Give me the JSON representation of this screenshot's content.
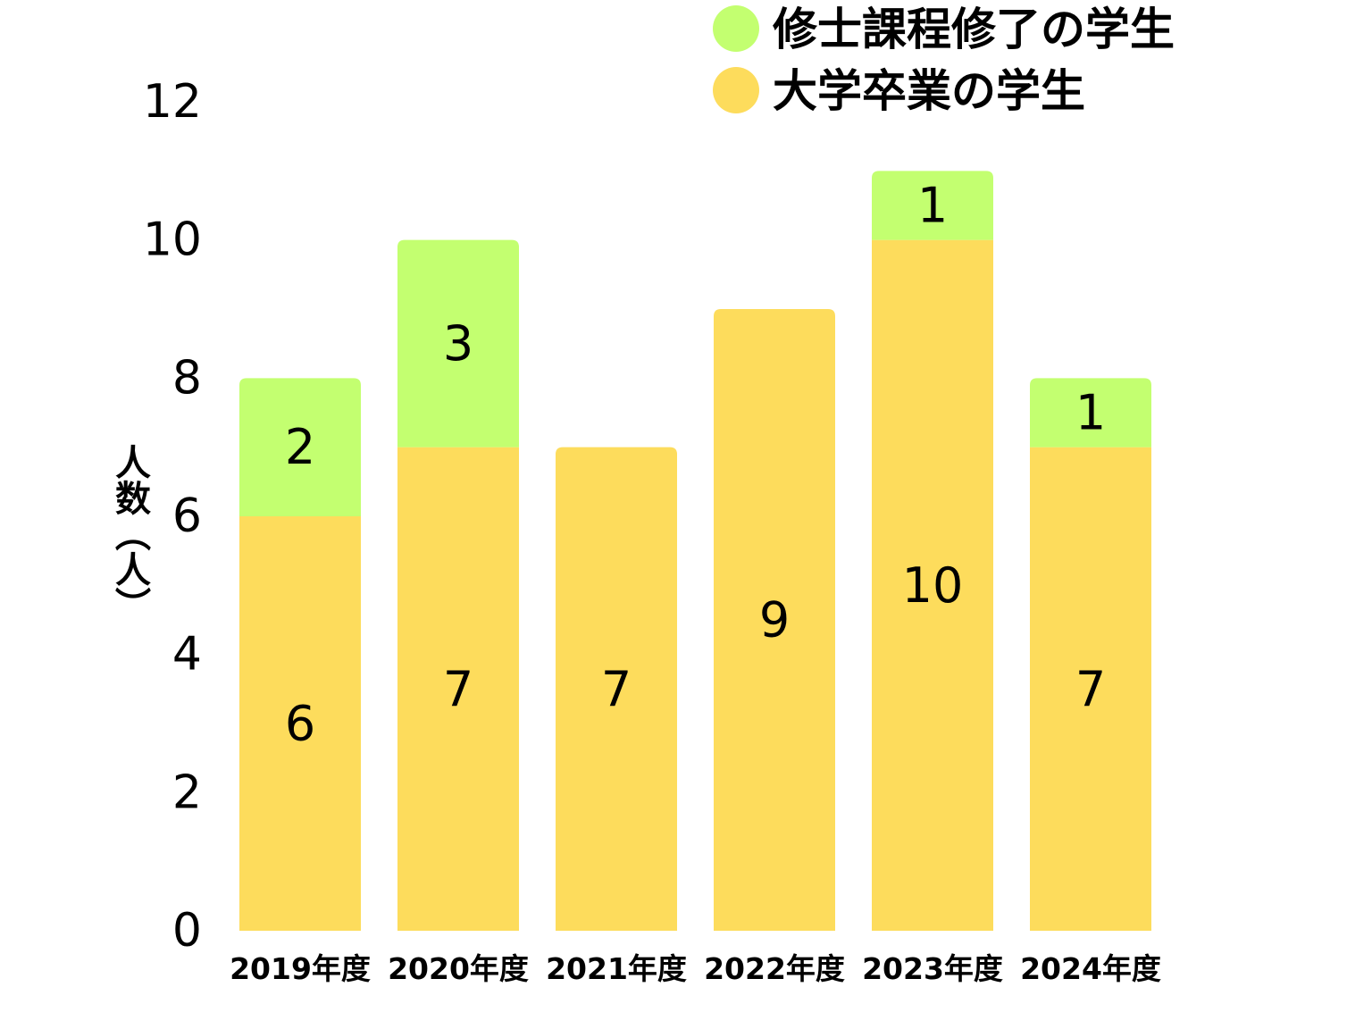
{
  "chart_data": {
    "type": "bar",
    "stacked": true,
    "categories": [
      "2019年度",
      "2020年度",
      "2021年度",
      "2022年度",
      "2023年度",
      "2024年度"
    ],
    "series": [
      {
        "name": "大学卒業の学生",
        "values": [
          6,
          7,
          7,
          9,
          10,
          7
        ],
        "color": "#FDDC5C"
      },
      {
        "name": "修士課程修了の学生",
        "values": [
          2,
          3,
          0,
          0,
          1,
          1
        ],
        "color": "#C3FF70"
      }
    ],
    "ylabel": "人数（人）",
    "ylim": [
      0,
      12
    ],
    "yticks": [
      0,
      2,
      4,
      6,
      8,
      10,
      12
    ],
    "grid": false,
    "legend": "top-right"
  }
}
